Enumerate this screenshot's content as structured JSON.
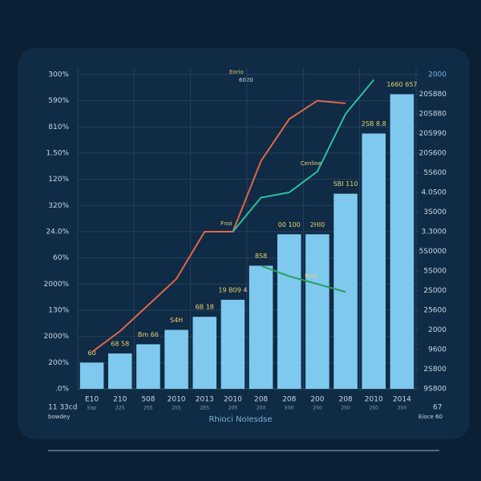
{
  "chart_data": {
    "type": "bar",
    "x_label": "Rhioci Nolesdse",
    "legend_texts": [
      "Eorio",
      "6020"
    ],
    "corner_texts": [
      "11 33cd",
      "bowdey",
      "67",
      "Eioce 60"
    ],
    "categories": [
      "E10",
      "210",
      "508",
      "2010",
      "2013",
      "2010",
      "208",
      "208",
      "200",
      "208",
      "2010",
      "2014"
    ],
    "sublabels": [
      "Eap",
      "22S",
      "2S5",
      "2S5",
      "2ES",
      "205",
      "2S0",
      "E00",
      "2S0",
      "2S0",
      "2S0",
      "2S0"
    ],
    "series": [
      {
        "name": "bars",
        "color": "#7fc9ef",
        "values": [
          1.0,
          1.35,
          1.7,
          2.25,
          2.75,
          3.4,
          4.7,
          5.9,
          5.9,
          7.45,
          9.75,
          11.25
        ]
      },
      {
        "name": "Fnoi",
        "color": "#e0674a",
        "kind": "line",
        "values": [
          1.4,
          2.2,
          3.2,
          4.2,
          6.0,
          6.0,
          8.7,
          10.3,
          11.0,
          10.9,
          null,
          null
        ]
      },
      {
        "name": "Cenline",
        "color": "#2bbfa0",
        "kind": "line",
        "values": [
          null,
          null,
          null,
          null,
          null,
          6.0,
          7.3,
          7.5,
          8.3,
          10.5,
          11.8,
          null
        ]
      },
      {
        "name": "Bost",
        "color": "#2a9d5c",
        "kind": "line",
        "values": [
          null,
          null,
          null,
          null,
          null,
          null,
          4.7,
          4.3,
          4.0,
          3.7,
          null,
          null
        ]
      }
    ],
    "annotations": [
      "60",
      "68 58",
      "Bm 66",
      "S4H",
      "6B 18",
      "19 B09 4",
      "8S8",
      "00 100",
      "2HI0",
      "SBI 110",
      "2SB 8.8",
      "1660 657"
    ],
    "ylim": [
      0,
      12
    ],
    "yticks": [
      {
        "value": 0,
        "label": ".0%"
      },
      {
        "value": 1,
        "label": "200%"
      },
      {
        "value": 2,
        "label": "2000%"
      },
      {
        "value": 3,
        "label": "130%"
      },
      {
        "value": 4,
        "label": "2000%"
      },
      {
        "value": 5,
        "label": "60%"
      },
      {
        "value": 6,
        "label": "24.0%"
      },
      {
        "value": 7,
        "label": "320%"
      },
      {
        "value": 8,
        "label": "120%"
      },
      {
        "value": 9,
        "label": "1.50%"
      },
      {
        "value": 10,
        "label": "810%"
      },
      {
        "value": 11,
        "label": "590%"
      },
      {
        "value": 12,
        "label": "300%"
      }
    ],
    "y2lim": [
      0,
      16
    ],
    "y2ticks": [
      {
        "value": 0,
        "label": "9S800"
      },
      {
        "value": 1,
        "label": "2S800"
      },
      {
        "value": 2,
        "label": "9600"
      },
      {
        "value": 3,
        "label": "2000"
      },
      {
        "value": 4,
        "label": "25600"
      },
      {
        "value": 5,
        "label": "2S000"
      },
      {
        "value": 6,
        "label": "5S000"
      },
      {
        "value": 7,
        "label": "5S0000"
      },
      {
        "value": 8,
        "label": "3.3000"
      },
      {
        "value": 9,
        "label": "3S000"
      },
      {
        "value": 10,
        "label": "4.0S00"
      },
      {
        "value": 11,
        "label": "5S600"
      },
      {
        "value": 12,
        "label": "20S600"
      },
      {
        "value": 13,
        "label": "20S990"
      },
      {
        "value": 14,
        "label": "20S880"
      },
      {
        "value": 15,
        "label": "20S880"
      },
      {
        "value": 16,
        "label": "2000"
      }
    ],
    "grid": true
  }
}
